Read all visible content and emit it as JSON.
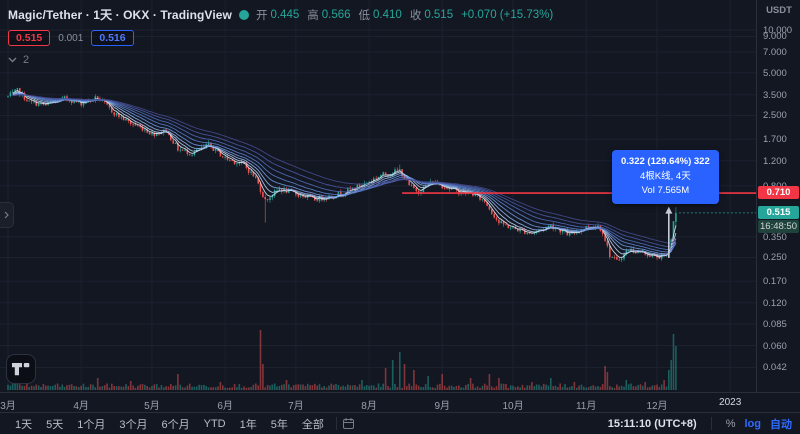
{
  "legend": {
    "title": "Magic/Tether · 1天 · OKX · TradingView",
    "ohlc": {
      "o_label": "开",
      "o": "0.445",
      "h_label": "高",
      "h": "0.566",
      "l_label": "低",
      "l": "0.410",
      "c_label": "收",
      "c": "0.515",
      "change": "+0.070 (+15.73%)"
    },
    "sell_price": "0.515",
    "spread": "0.001",
    "buy_price": "0.516",
    "indicators_collapsed_count": "2"
  },
  "measure_tooltip": {
    "line1": "0.322 (129.64%) 322",
    "line2": "4根K线, 4天",
    "line3": "Vol 7.565M",
    "bg": "#2962ff"
  },
  "price_axis": {
    "unit": "USDT",
    "ticks": [
      {
        "v": 10.0,
        "t": "10.000"
      },
      {
        "v": 9.0,
        "t": "9.000"
      },
      {
        "v": 7.0,
        "t": "7.000"
      },
      {
        "v": 5.0,
        "t": "5.000"
      },
      {
        "v": 3.5,
        "t": "3.500"
      },
      {
        "v": 2.5,
        "t": "2.500"
      },
      {
        "v": 1.7,
        "t": "1.700"
      },
      {
        "v": 1.2,
        "t": "1.200"
      },
      {
        "v": 0.8,
        "t": "0.800"
      },
      {
        "v": 0.35,
        "t": "0.350"
      },
      {
        "v": 0.25,
        "t": "0.250"
      },
      {
        "v": 0.17,
        "t": "0.170"
      },
      {
        "v": 0.12,
        "t": "0.120"
      },
      {
        "v": 0.085,
        "t": "0.085"
      },
      {
        "v": 0.06,
        "t": "0.060"
      },
      {
        "v": 0.042,
        "t": "0.042"
      }
    ],
    "line_label": "0.710",
    "last_price": "0.515",
    "countdown": "16:48:50"
  },
  "time_axis": {
    "months": [
      {
        "label": "3月",
        "day": 0
      },
      {
        "label": "4月",
        "day": 31
      },
      {
        "label": "5月",
        "day": 61
      },
      {
        "label": "6月",
        "day": 92
      },
      {
        "label": "7月",
        "day": 122
      },
      {
        "label": "8月",
        "day": 153
      },
      {
        "label": "9月",
        "day": 184
      },
      {
        "label": "10月",
        "day": 214
      },
      {
        "label": "11月",
        "day": 245
      },
      {
        "label": "12月",
        "day": 275
      },
      {
        "label": "2023",
        "day": 306
      }
    ]
  },
  "toolbar": {
    "ranges": [
      "1天",
      "5天",
      "1个月",
      "3个月",
      "6个月",
      "YTD",
      "1年",
      "5年",
      "全部"
    ],
    "clock": "15:11:10 (UTC+8)",
    "percent_label": "%",
    "log_label": "log",
    "auto_label": "自动"
  },
  "chart_data": {
    "type": "candlestick",
    "symbol": "Magic/Tether",
    "exchange": "OKX",
    "interval": "1天",
    "scale": "log",
    "ylim": [
      0.042,
      10.0
    ],
    "n_bars": 284,
    "up_color": "#26a69a",
    "down_color": "#ef5350",
    "grid_color": "#1c2130",
    "price_anchors": [
      [
        0,
        3.4
      ],
      [
        4,
        3.75
      ],
      [
        9,
        3.1
      ],
      [
        16,
        2.95
      ],
      [
        24,
        3.3
      ],
      [
        31,
        3.05
      ],
      [
        38,
        3.35
      ],
      [
        45,
        2.6
      ],
      [
        52,
        2.2
      ],
      [
        58,
        2.0
      ],
      [
        61,
        1.85
      ],
      [
        67,
        1.95
      ],
      [
        72,
        1.45
      ],
      [
        78,
        1.35
      ],
      [
        85,
        1.55
      ],
      [
        92,
        1.25
      ],
      [
        100,
        1.12
      ],
      [
        105,
        0.9
      ],
      [
        109,
        0.63
      ],
      [
        115,
        0.76
      ],
      [
        122,
        0.7
      ],
      [
        130,
        0.64
      ],
      [
        138,
        0.68
      ],
      [
        146,
        0.76
      ],
      [
        153,
        0.86
      ],
      [
        158,
        0.95
      ],
      [
        166,
        1.03
      ],
      [
        170,
        0.8
      ],
      [
        174,
        0.73
      ],
      [
        180,
        0.86
      ],
      [
        184,
        0.8
      ],
      [
        190,
        0.73
      ],
      [
        197,
        0.7
      ],
      [
        202,
        0.62
      ],
      [
        208,
        0.44
      ],
      [
        214,
        0.4
      ],
      [
        222,
        0.37
      ],
      [
        230,
        0.42
      ],
      [
        238,
        0.36
      ],
      [
        245,
        0.41
      ],
      [
        250,
        0.42
      ],
      [
        252,
        0.38
      ],
      [
        255,
        0.26
      ],
      [
        258,
        0.235
      ],
      [
        263,
        0.285
      ],
      [
        269,
        0.27
      ],
      [
        274,
        0.252
      ],
      [
        279,
        0.255
      ],
      [
        280,
        0.27
      ],
      [
        281,
        0.33
      ],
      [
        282,
        0.4
      ],
      [
        283,
        0.515
      ]
    ],
    "bar_overrides": [
      {
        "d": 109,
        "l": 0.44
      },
      {
        "d": 166,
        "h": 1.13
      },
      {
        "d": 280,
        "o": 0.255,
        "c": 0.285
      },
      {
        "d": 281,
        "o": 0.285,
        "c": 0.335
      },
      {
        "d": 282,
        "o": 0.335,
        "c": 0.45
      },
      {
        "d": 283,
        "o": 0.445,
        "h": 0.566,
        "l": 0.41,
        "c": 0.515
      }
    ],
    "volume_spikes": [
      [
        3,
        14
      ],
      [
        8,
        10
      ],
      [
        38,
        12
      ],
      [
        52,
        9
      ],
      [
        72,
        16
      ],
      [
        90,
        8
      ],
      [
        107,
        60
      ],
      [
        108,
        26
      ],
      [
        118,
        10
      ],
      [
        150,
        10
      ],
      [
        160,
        22
      ],
      [
        163,
        30
      ],
      [
        166,
        38
      ],
      [
        168,
        26
      ],
      [
        172,
        20
      ],
      [
        178,
        14
      ],
      [
        184,
        16
      ],
      [
        196,
        12
      ],
      [
        204,
        16
      ],
      [
        208,
        12
      ],
      [
        222,
        8
      ],
      [
        230,
        12
      ],
      [
        240,
        8
      ],
      [
        253,
        24
      ],
      [
        254,
        18
      ],
      [
        262,
        10
      ],
      [
        270,
        8
      ],
      [
        278,
        10
      ],
      [
        280,
        20
      ],
      [
        281,
        30
      ],
      [
        282,
        56
      ],
      [
        283,
        44
      ]
    ],
    "ema_periods": [
      4,
      7,
      11,
      16,
      22,
      29,
      37,
      46
    ],
    "ema_colors": [
      "#dfe9f5",
      "#b9d0f2",
      "#8fb3ea",
      "#6d96de",
      "#5a7ecd",
      "#4f6bba",
      "#4a59a5",
      "#474b8e"
    ],
    "red_line": {
      "price": 0.71,
      "from_day": 167,
      "color": "#f23645"
    },
    "last_price_line": {
      "price": 0.515,
      "color": "#26a69a"
    },
    "measure_arrow": {
      "day": 280,
      "from": 0.2484,
      "to": 0.5704
    }
  }
}
